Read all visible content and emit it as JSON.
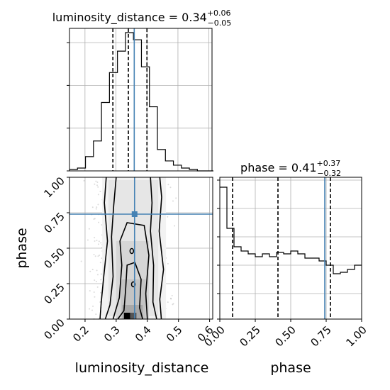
{
  "chart_data": [
    {
      "panel": "luminosity_distance-marginal",
      "type": "histogram",
      "title": {
        "label": "luminosity_distance",
        "median": "0.34",
        "plus": "+0.06",
        "minus": "−0.05"
      },
      "xlim": [
        0.15,
        0.61
      ],
      "bins": [
        0.15,
        0.1758,
        0.2016,
        0.2274,
        0.2532,
        0.279,
        0.3048,
        0.3306,
        0.3564,
        0.3822,
        0.408,
        0.4338,
        0.4596,
        0.4854,
        0.5112,
        0.537,
        0.5628,
        0.5886,
        0.6144
      ],
      "counts": [
        0.01,
        0.02,
        0.1,
        0.21,
        0.48,
        0.69,
        0.84,
        0.97,
        0.92,
        0.73,
        0.45,
        0.15,
        0.07,
        0.04,
        0.02,
        0.01,
        0.0,
        0.0
      ],
      "quantiles": [
        0.29,
        0.34,
        0.4
      ],
      "truth": 0.359,
      "grid": true
    },
    {
      "panel": "phase-marginal",
      "type": "histogram",
      "title": {
        "label": "phase",
        "median": "0.41",
        "plus": "+0.37",
        "minus": "−0.32"
      },
      "xlim": [
        0.0,
        1.0
      ],
      "bins": [
        0.0,
        0.05,
        0.1,
        0.15,
        0.2,
        0.25,
        0.3,
        0.35,
        0.4,
        0.45,
        0.5,
        0.55,
        0.6,
        0.65,
        0.7,
        0.75,
        0.8,
        0.85,
        0.9,
        0.95,
        1.0
      ],
      "counts": [
        0.93,
        0.64,
        0.51,
        0.48,
        0.46,
        0.44,
        0.46,
        0.44,
        0.47,
        0.46,
        0.48,
        0.46,
        0.43,
        0.43,
        0.41,
        0.38,
        0.32,
        0.33,
        0.35,
        0.38
      ],
      "quantiles": [
        0.09,
        0.41,
        0.78
      ],
      "truth": 0.74,
      "grid": true
    },
    {
      "panel": "luminosity_distance-vs-phase",
      "type": "2d-density",
      "xlabel": "luminosity_distance",
      "ylabel": "phase",
      "xlim": [
        0.15,
        0.61
      ],
      "ylim": [
        0.0,
        1.0
      ],
      "xticks": [
        "0.2",
        "0.3",
        "0.4",
        "0.5",
        "0.6"
      ],
      "yticks": [
        "0.00",
        "0.25",
        "0.50",
        "0.75",
        "1.00"
      ],
      "truth": {
        "x": 0.359,
        "y": 0.74
      },
      "grid": true
    }
  ],
  "colors": {
    "truth": "#4682b4",
    "hist": "#000000",
    "grid": "#b0b0b0"
  }
}
